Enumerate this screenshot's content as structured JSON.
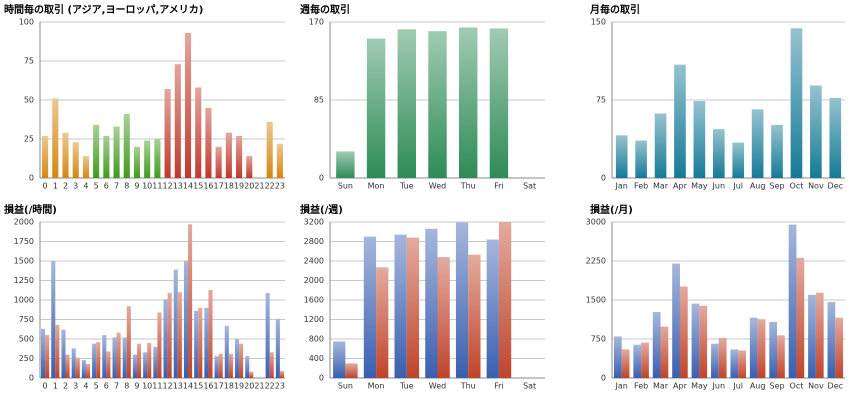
{
  "chart_data": [
    {
      "type": "bar",
      "title": "時間毎の取引 (アジア,ヨーロッパ,アメリカ)",
      "categories": [
        "0",
        "1",
        "2",
        "3",
        "4",
        "5",
        "6",
        "7",
        "8",
        "9",
        "10",
        "11",
        "12",
        "13",
        "14",
        "15",
        "16",
        "17",
        "18",
        "19",
        "20",
        "21",
        "22",
        "23"
      ],
      "values": [
        27,
        51,
        29,
        23,
        14,
        34,
        27,
        33,
        41,
        20,
        24,
        25,
        57,
        73,
        93,
        58,
        45,
        20,
        29,
        27,
        14,
        0,
        36,
        22
      ],
      "colors": [
        "#d4870f",
        "#d4870f",
        "#d4870f",
        "#d4870f",
        "#d4870f",
        "#3f9a1c",
        "#3f9a1c",
        "#3f9a1c",
        "#3f9a1c",
        "#3f9a1c",
        "#3f9a1c",
        "#3f9a1c",
        "#c0392b",
        "#c0392b",
        "#c0392b",
        "#c0392b",
        "#c0392b",
        "#c0392b",
        "#c0392b",
        "#c0392b",
        "#c0392b",
        "#c0392b",
        "#d4870f",
        "#d4870f"
      ],
      "ylim": [
        0,
        100
      ],
      "yticks": [
        0,
        25,
        50,
        75,
        100
      ],
      "grid": true
    },
    {
      "type": "bar",
      "title": "週毎の取引",
      "categories": [
        "Sun",
        "Mon",
        "Tue",
        "Wed",
        "Thu",
        "Fri",
        "Sat"
      ],
      "values": [
        29,
        152,
        162,
        160,
        164,
        163,
        0
      ],
      "color": "#2e8b57",
      "ylim": [
        0,
        170
      ],
      "yticks": [
        0,
        85,
        170
      ],
      "grid": true
    },
    {
      "type": "bar",
      "title": "月毎の取引",
      "categories": [
        "Jan",
        "Feb",
        "Mar",
        "Apr",
        "May",
        "Jun",
        "Jul",
        "Aug",
        "Sep",
        "Oct",
        "Nov",
        "Dec"
      ],
      "values": [
        41,
        36,
        62,
        109,
        74,
        47,
        34,
        66,
        51,
        144,
        89,
        77
      ],
      "color": "#157a96",
      "ylim": [
        0,
        150
      ],
      "yticks": [
        0,
        75,
        150
      ],
      "grid": true
    },
    {
      "type": "grouped-bar",
      "title": "損益(/時間)",
      "categories": [
        "0",
        "1",
        "2",
        "3",
        "4",
        "5",
        "6",
        "7",
        "8",
        "9",
        "10",
        "11",
        "12",
        "13",
        "14",
        "15",
        "16",
        "17",
        "18",
        "19",
        "20",
        "21",
        "22",
        "23"
      ],
      "series": [
        {
          "color": "#3a5fb0",
          "values": [
            630,
            1500,
            620,
            380,
            230,
            440,
            550,
            520,
            520,
            300,
            330,
            400,
            1010,
            1390,
            1500,
            860,
            900,
            280,
            670,
            500,
            280,
            0,
            1090,
            760
          ]
        },
        {
          "color": "#c0442a",
          "values": [
            550,
            680,
            300,
            260,
            180,
            460,
            340,
            580,
            920,
            440,
            450,
            840,
            1090,
            1100,
            1970,
            900,
            1130,
            310,
            310,
            440,
            80,
            0,
            330,
            90
          ]
        }
      ],
      "ylim": [
        0,
        2000
      ],
      "yticks": [
        0,
        250,
        500,
        750,
        1000,
        1250,
        1500,
        1750,
        2000
      ],
      "grid": true
    },
    {
      "type": "grouped-bar",
      "title": "損益(/週)",
      "categories": [
        "Sun",
        "Mon",
        "Tue",
        "Wed",
        "Thu",
        "Fri",
        "Sat"
      ],
      "series": [
        {
          "color": "#3a5fb0",
          "values": [
            750,
            2900,
            2940,
            3060,
            3190,
            2840,
            0
          ]
        },
        {
          "color": "#c0442a",
          "values": [
            300,
            2270,
            2880,
            2480,
            2530,
            3200,
            0
          ]
        }
      ],
      "ylim": [
        0,
        3200
      ],
      "yticks": [
        0,
        400,
        800,
        1200,
        1600,
        2000,
        2400,
        2800,
        3200
      ],
      "grid": true
    },
    {
      "type": "grouped-bar",
      "title": "損益(/月)",
      "categories": [
        "Jan",
        "Feb",
        "Mar",
        "Apr",
        "May",
        "Jun",
        "Jul",
        "Aug",
        "Sep",
        "Oct",
        "Nov",
        "Dec"
      ],
      "series": [
        {
          "color": "#3a5fb0",
          "values": [
            800,
            640,
            1270,
            2200,
            1430,
            660,
            550,
            1160,
            1080,
            2950,
            1600,
            1460
          ]
        },
        {
          "color": "#c0442a",
          "values": [
            550,
            680,
            990,
            1760,
            1390,
            770,
            530,
            1130,
            820,
            2310,
            1640,
            1160
          ]
        }
      ],
      "ylim": [
        0,
        3000
      ],
      "yticks": [
        0,
        750,
        1500,
        2250,
        3000
      ],
      "grid": true
    }
  ]
}
